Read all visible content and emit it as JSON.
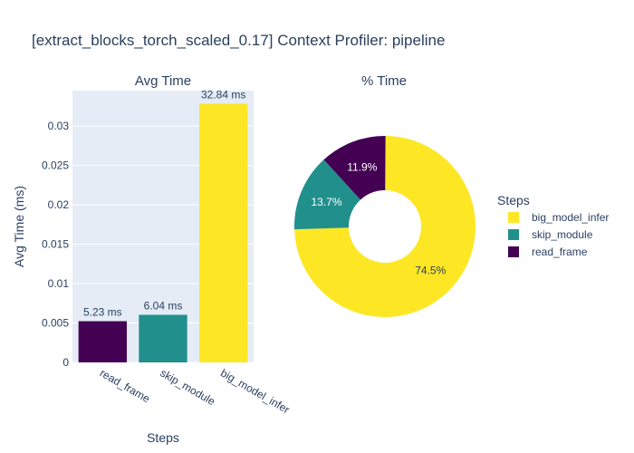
{
  "title": "[extract_blocks_torch_scaled_0.17] Context Profiler: pipeline",
  "colors": {
    "read_frame": "#440154",
    "skip_module": "#21908d",
    "big_model_infer": "#fde725",
    "plot_bg": "#e5ecf6",
    "text": "#2a3f5f"
  },
  "chart_data": [
    {
      "type": "bar",
      "title": "Avg Time",
      "xlabel": "Steps",
      "ylabel": "Avg Time (ms)",
      "categories": [
        "read_frame",
        "skip_module",
        "big_model_infer"
      ],
      "values": [
        0.00523,
        0.00604,
        0.03284
      ],
      "data_labels": [
        "5.23 ms",
        "6.04 ms",
        "32.84 ms"
      ],
      "ylim": [
        0,
        0.0345
      ],
      "yticks": [
        0,
        0.005,
        0.01,
        0.015,
        0.02,
        0.025,
        0.03
      ],
      "ytick_labels": [
        "0",
        "0.005",
        "0.01",
        "0.015",
        "0.02",
        "0.025",
        "0.03"
      ],
      "grid": true
    },
    {
      "type": "pie",
      "title": "% Time",
      "hole": true,
      "slices": [
        {
          "label": "big_model_infer",
          "percent": 74.5,
          "text": "74.5%"
        },
        {
          "label": "skip_module",
          "percent": 13.7,
          "text": "13.7%"
        },
        {
          "label": "read_frame",
          "percent": 11.9,
          "text": "11.9%"
        }
      ]
    }
  ],
  "legend": {
    "title": "Steps",
    "placement": "right",
    "items": [
      "big_model_infer",
      "skip_module",
      "read_frame"
    ]
  }
}
